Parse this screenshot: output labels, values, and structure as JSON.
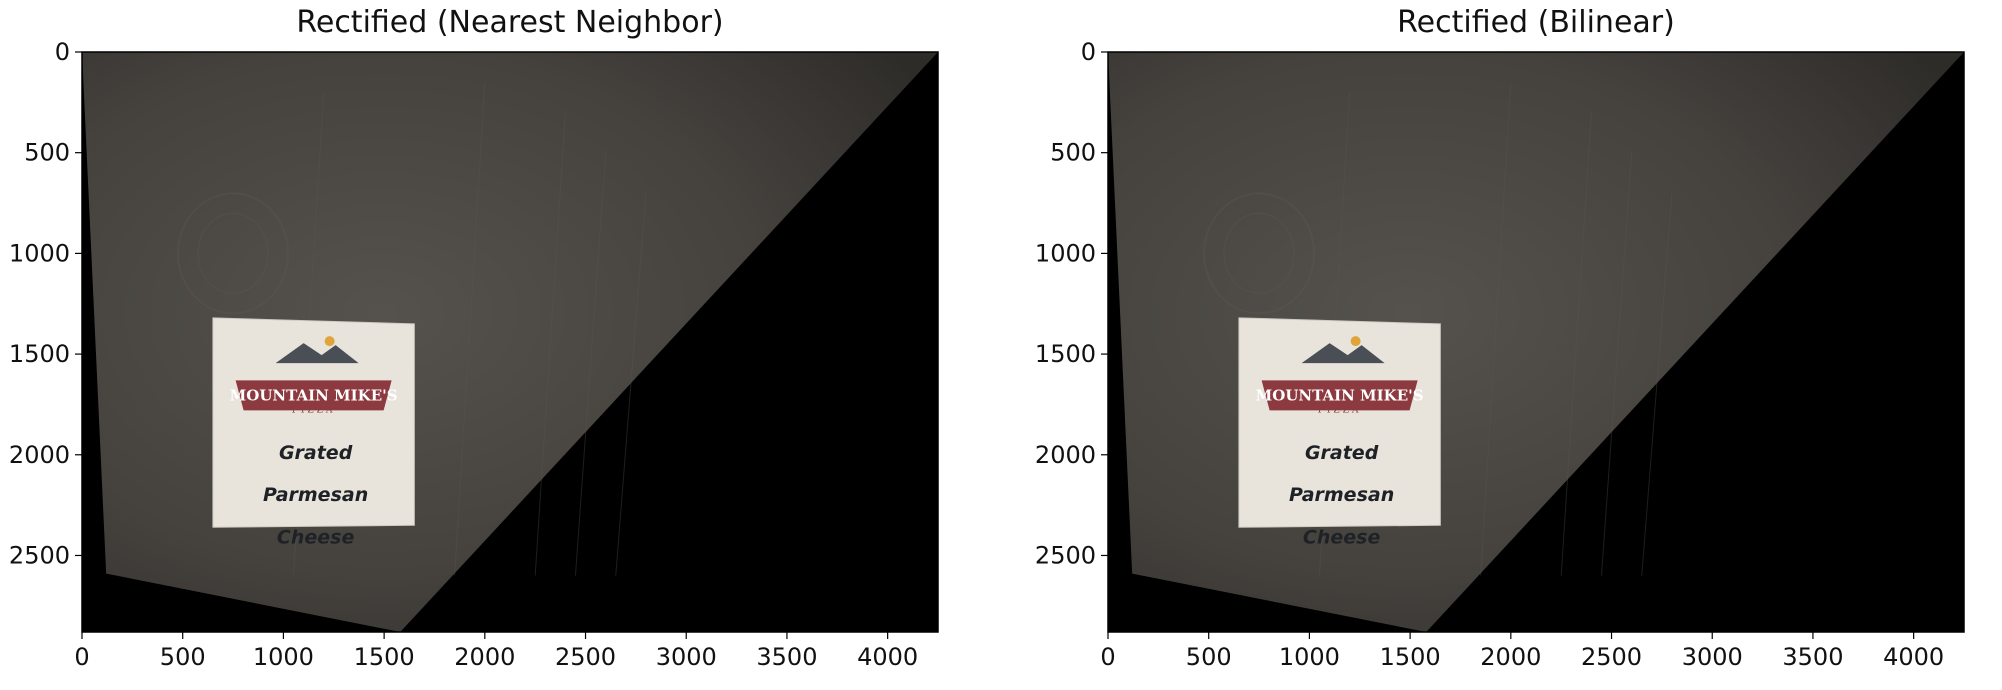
{
  "chart_data": [
    {
      "type": "image",
      "title": "Rectified (Nearest Neighbor)",
      "xlim": [
        0,
        4250
      ],
      "ylim": [
        2880,
        0
      ],
      "xticks": [
        0,
        500,
        1000,
        1500,
        2000,
        2500,
        3000,
        3500,
        4000
      ],
      "yticks": [
        0,
        500,
        1000,
        1500,
        2000,
        2500
      ],
      "xtick_labels": [
        "0",
        "500",
        "1000",
        "1500",
        "2000",
        "2500",
        "3000",
        "3500",
        "4000"
      ],
      "ytick_labels": [
        "0",
        "500",
        "1000",
        "1500",
        "2000",
        "2500"
      ]
    },
    {
      "type": "image",
      "title": "Rectified (Bilinear)",
      "xlim": [
        0,
        4250
      ],
      "ylim": [
        2880,
        0
      ],
      "xticks": [
        0,
        500,
        1000,
        1500,
        2000,
        2500,
        3000,
        3500,
        4000
      ],
      "yticks": [
        0,
        500,
        1000,
        1500,
        2000,
        2500
      ],
      "xtick_labels": [
        "0",
        "500",
        "1000",
        "1500",
        "2000",
        "2500",
        "3000",
        "3500",
        "4000"
      ],
      "ytick_labels": [
        "0",
        "500",
        "1000",
        "1500",
        "2000",
        "2500"
      ]
    }
  ],
  "image_content": {
    "warped_region_corners": [
      [
        0,
        0
      ],
      [
        4250,
        0
      ],
      [
        1580,
        2880
      ],
      [
        120,
        2590
      ],
      [
        0,
        0
      ]
    ],
    "packet_corners": [
      [
        650,
        1320
      ],
      [
        1650,
        1350
      ],
      [
        1650,
        2350
      ],
      [
        650,
        2360
      ]
    ],
    "packet_brand": "MOUNTAIN MIKE'S",
    "packet_sub": "PIZZA",
    "packet_lines": [
      "Grated",
      "Parmesan",
      "Cheese"
    ],
    "colors": {
      "background": "#000000",
      "wood": "#4b4844",
      "packet": "#e8e4dc",
      "logo": "#8c3a3f"
    }
  }
}
